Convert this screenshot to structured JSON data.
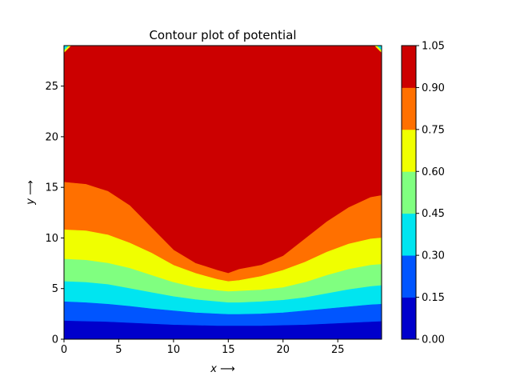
{
  "chart_data": {
    "type": "contourf",
    "title": "Contour plot of potential",
    "xlabel": "x ⟶",
    "ylabel": "y ⟶",
    "xlim": [
      0,
      29
    ],
    "ylim": [
      0,
      29
    ],
    "xticks": [
      0,
      5,
      10,
      15,
      20,
      25
    ],
    "yticks": [
      0,
      5,
      10,
      15,
      20,
      25
    ],
    "levels": [
      0.0,
      0.15,
      0.3,
      0.45,
      0.6,
      0.75,
      0.9,
      1.05
    ],
    "level_labels": [
      "0.00",
      "0.15",
      "0.30",
      "0.45",
      "0.60",
      "0.75",
      "0.90",
      "1.05"
    ],
    "band_colors": [
      "#0000cc",
      "#0055ff",
      "#00e5f0",
      "#80ff80",
      "#f0ff00",
      "#ff7000",
      "#cc0000"
    ],
    "contour_x": [
      0,
      2,
      4,
      6,
      8,
      10,
      12,
      14,
      15,
      16,
      18,
      20,
      22,
      24,
      26,
      28,
      29
    ],
    "contours": [
      {
        "level": 0.15,
        "y": [
          1.8,
          1.75,
          1.7,
          1.6,
          1.5,
          1.4,
          1.35,
          1.3,
          1.3,
          1.3,
          1.3,
          1.35,
          1.4,
          1.5,
          1.6,
          1.7,
          1.75
        ]
      },
      {
        "level": 0.3,
        "y": [
          3.7,
          3.6,
          3.45,
          3.25,
          3.0,
          2.8,
          2.6,
          2.5,
          2.45,
          2.45,
          2.5,
          2.6,
          2.8,
          3.0,
          3.2,
          3.4,
          3.45
        ]
      },
      {
        "level": 0.45,
        "y": [
          5.7,
          5.6,
          5.4,
          5.0,
          4.6,
          4.2,
          3.9,
          3.7,
          3.6,
          3.6,
          3.7,
          3.85,
          4.1,
          4.5,
          4.9,
          5.2,
          5.3
        ]
      },
      {
        "level": 0.6,
        "y": [
          7.9,
          7.8,
          7.5,
          7.0,
          6.3,
          5.6,
          5.1,
          4.8,
          4.7,
          4.75,
          4.85,
          5.1,
          5.6,
          6.3,
          6.9,
          7.3,
          7.4
        ]
      },
      {
        "level": 0.75,
        "y": [
          10.8,
          10.7,
          10.3,
          9.5,
          8.5,
          7.3,
          6.5,
          5.9,
          5.7,
          5.8,
          6.2,
          6.8,
          7.6,
          8.6,
          9.4,
          9.9,
          10.0
        ]
      },
      {
        "level": 0.9,
        "y": [
          15.5,
          15.3,
          14.6,
          13.2,
          11.0,
          8.8,
          7.5,
          6.8,
          6.5,
          6.9,
          7.3,
          8.2,
          9.9,
          11.6,
          13.0,
          14.0,
          14.2
        ]
      }
    ]
  }
}
